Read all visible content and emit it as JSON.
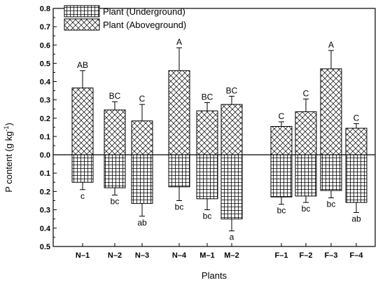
{
  "chart_data": {
    "type": "bar",
    "xlabel": "Plants",
    "ylabel_main": "P content (g kg",
    "ylabel_sup": "-1",
    "ylabel_close": ")",
    "ylim_above": [
      0,
      0.8
    ],
    "ylim_below": [
      0,
      0.5
    ],
    "yticks_above": [
      "0.0",
      "0.1",
      "0.2",
      "0.3",
      "0.4",
      "0.5",
      "0.6",
      "0.7",
      "0.8"
    ],
    "yticks_below": [
      "0.1",
      "0.2",
      "0.3",
      "0.4",
      "0.5"
    ],
    "categories": [
      "N-1",
      "N-2",
      "N-3",
      "N-4",
      "M-1",
      "M-2",
      "F-1",
      "F-2",
      "F-3",
      "F-4"
    ],
    "legend_position": "top-left",
    "series": [
      {
        "name": "Plant (Underground)",
        "pattern": "grid",
        "values": [
          0.15,
          0.18,
          0.265,
          0.175,
          0.24,
          0.35,
          0.23,
          0.225,
          0.195,
          0.26
        ],
        "errors": [
          0.04,
          0.04,
          0.07,
          0.075,
          0.06,
          0.065,
          0.04,
          0.035,
          0.04,
          0.055
        ],
        "labels": [
          "c",
          "bc",
          "ab",
          "bc",
          "bc",
          "a",
          "bc",
          "bc",
          "bc",
          "ab"
        ]
      },
      {
        "name": "Plant (Aboveground)",
        "pattern": "crosshatch",
        "values": [
          0.365,
          0.245,
          0.185,
          0.46,
          0.24,
          0.275,
          0.155,
          0.235,
          0.47,
          0.145
        ],
        "errors": [
          0.095,
          0.045,
          0.09,
          0.125,
          0.045,
          0.045,
          0.025,
          0.07,
          0.1,
          0.025
        ],
        "labels": [
          "AB",
          "BC",
          "C",
          "A",
          "BC",
          "BC",
          "C",
          "C",
          "A",
          "C"
        ]
      }
    ]
  }
}
